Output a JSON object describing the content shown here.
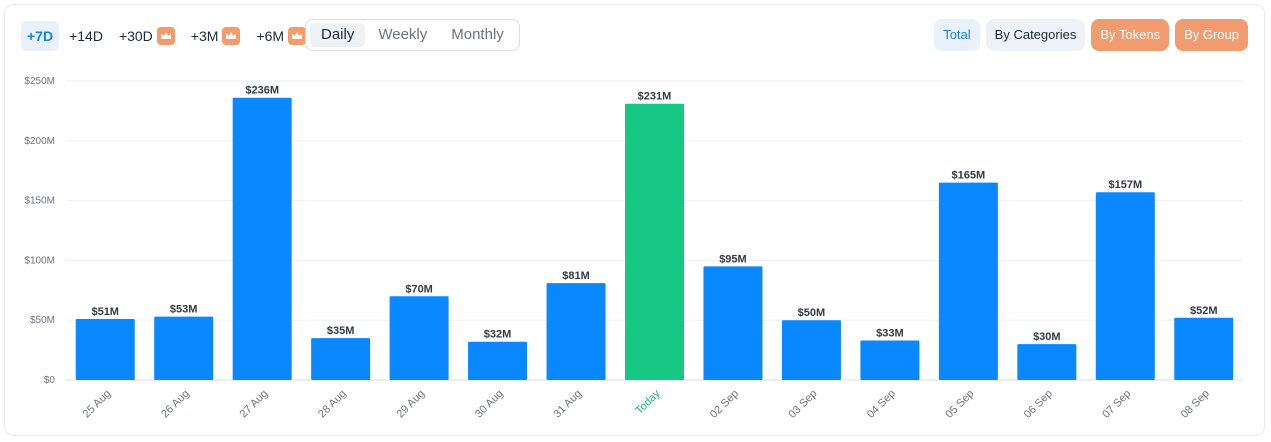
{
  "toolbar": {
    "ranges": [
      {
        "label": "+7D",
        "active": true,
        "premium": false
      },
      {
        "label": "+14D",
        "active": false,
        "premium": false
      },
      {
        "label": "+30D",
        "active": false,
        "premium": true
      },
      {
        "label": "+3M",
        "active": false,
        "premium": true
      },
      {
        "label": "+6M",
        "active": false,
        "premium": true
      }
    ],
    "periods": [
      {
        "label": "Daily",
        "active": true
      },
      {
        "label": "Weekly",
        "active": false
      },
      {
        "label": "Monthly",
        "active": false
      }
    ],
    "views": [
      {
        "label": "Total",
        "style": "active"
      },
      {
        "label": "By Categories",
        "style": "default"
      },
      {
        "label": "By Tokens",
        "style": "premium"
      },
      {
        "label": "By Group",
        "style": "premium"
      }
    ],
    "premium_icon": "crown-icon"
  },
  "colors": {
    "bar": "#0a88ff",
    "highlight_bar": "#17c784",
    "accent": "#1a82e6",
    "premium": "#f29b6f"
  },
  "chart_data": {
    "type": "bar",
    "categories": [
      "25 Aug",
      "26 Aug",
      "27 Aug",
      "28 Aug",
      "29 Aug",
      "30 Aug",
      "31 Aug",
      "Today",
      "02 Sep",
      "03 Sep",
      "04 Sep",
      "05 Sep",
      "06 Sep",
      "07 Sep",
      "08 Sep"
    ],
    "values": [
      51,
      53,
      236,
      35,
      70,
      32,
      81,
      231,
      95,
      50,
      33,
      165,
      30,
      157,
      52
    ],
    "value_labels": [
      "$51M",
      "$53M",
      "$236M",
      "$35M",
      "$70M",
      "$32M",
      "$81M",
      "$231M",
      "$95M",
      "$50M",
      "$33M",
      "$165M",
      "$30M",
      "$157M",
      "$52M"
    ],
    "highlight_category": "Today",
    "y_ticks": [
      0,
      50,
      100,
      150,
      200,
      250
    ],
    "y_tick_labels": [
      "$0",
      "$50M",
      "$100M",
      "$150M",
      "$200M",
      "$250M"
    ],
    "ylim": [
      0,
      250
    ],
    "grid": true,
    "legend": "none"
  }
}
